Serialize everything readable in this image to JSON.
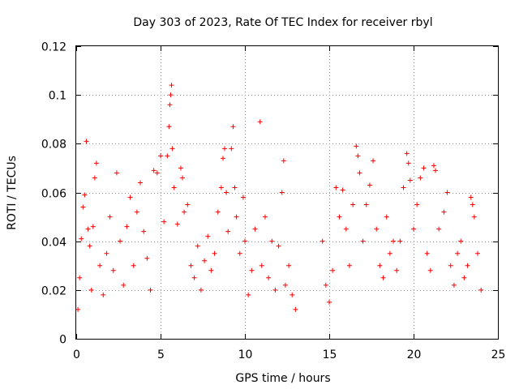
{
  "chart_data": {
    "type": "scatter",
    "title": "Day 303 of 2023, Rate Of TEC Index for receiver rbyl",
    "xlabel": "GPS time / hours",
    "ylabel": "ROTI / TECUs",
    "xlim": [
      0,
      25
    ],
    "ylim": [
      0,
      0.12
    ],
    "xticks": [
      0,
      5,
      10,
      15,
      20,
      25
    ],
    "xtick_labels": [
      "0",
      "5",
      "10",
      "15",
      "20",
      "25"
    ],
    "yticks": [
      0,
      0.02,
      0.04,
      0.06,
      0.08,
      0.1,
      0.12
    ],
    "ytick_labels": [
      "0",
      "0.02",
      "0.04",
      "0.06",
      "0.08",
      "0.1",
      "0.12"
    ],
    "grid": true,
    "marker": "+",
    "color": "#ff0000",
    "series": [
      {
        "name": "ROTI",
        "points": [
          [
            0.1,
            0.012
          ],
          [
            0.2,
            0.025
          ],
          [
            0.3,
            0.041
          ],
          [
            0.4,
            0.054
          ],
          [
            0.5,
            0.059
          ],
          [
            0.6,
            0.081
          ],
          [
            0.7,
            0.045
          ],
          [
            0.8,
            0.038
          ],
          [
            0.9,
            0.02
          ],
          [
            1.0,
            0.046
          ],
          [
            1.1,
            0.066
          ],
          [
            1.2,
            0.072
          ],
          [
            1.4,
            0.03
          ],
          [
            1.6,
            0.018
          ],
          [
            1.8,
            0.035
          ],
          [
            2.0,
            0.05
          ],
          [
            2.2,
            0.028
          ],
          [
            2.4,
            0.068
          ],
          [
            2.6,
            0.04
          ],
          [
            2.8,
            0.022
          ],
          [
            3.0,
            0.046
          ],
          [
            3.2,
            0.058
          ],
          [
            3.4,
            0.03
          ],
          [
            3.6,
            0.052
          ],
          [
            3.8,
            0.064
          ],
          [
            4.0,
            0.044
          ],
          [
            4.2,
            0.033
          ],
          [
            4.4,
            0.02
          ],
          [
            4.6,
            0.069
          ],
          [
            4.8,
            0.068
          ],
          [
            5.0,
            0.075
          ],
          [
            5.2,
            0.048
          ],
          [
            5.4,
            0.075
          ],
          [
            5.5,
            0.087
          ],
          [
            5.55,
            0.096
          ],
          [
            5.6,
            0.1
          ],
          [
            5.65,
            0.104
          ],
          [
            5.7,
            0.078
          ],
          [
            5.8,
            0.062
          ],
          [
            6.0,
            0.047
          ],
          [
            6.2,
            0.07
          ],
          [
            6.3,
            0.066
          ],
          [
            6.4,
            0.052
          ],
          [
            6.6,
            0.055
          ],
          [
            6.8,
            0.03
          ],
          [
            7.0,
            0.025
          ],
          [
            7.2,
            0.038
          ],
          [
            7.4,
            0.02
          ],
          [
            7.6,
            0.032
          ],
          [
            7.8,
            0.042
          ],
          [
            8.0,
            0.028
          ],
          [
            8.2,
            0.035
          ],
          [
            8.4,
            0.052
          ],
          [
            8.6,
            0.062
          ],
          [
            8.7,
            0.074
          ],
          [
            8.8,
            0.078
          ],
          [
            8.9,
            0.06
          ],
          [
            9.0,
            0.044
          ],
          [
            9.2,
            0.078
          ],
          [
            9.3,
            0.087
          ],
          [
            9.4,
            0.062
          ],
          [
            9.5,
            0.05
          ],
          [
            9.7,
            0.035
          ],
          [
            9.9,
            0.058
          ],
          [
            10.0,
            0.04
          ],
          [
            10.2,
            0.018
          ],
          [
            10.4,
            0.028
          ],
          [
            10.6,
            0.045
          ],
          [
            10.9,
            0.089
          ],
          [
            11.0,
            0.03
          ],
          [
            11.2,
            0.05
          ],
          [
            11.4,
            0.025
          ],
          [
            11.6,
            0.04
          ],
          [
            11.8,
            0.02
          ],
          [
            12.0,
            0.038
          ],
          [
            12.2,
            0.06
          ],
          [
            12.3,
            0.073
          ],
          [
            12.4,
            0.022
          ],
          [
            12.6,
            0.03
          ],
          [
            12.8,
            0.018
          ],
          [
            13.0,
            0.012
          ],
          [
            14.6,
            0.04
          ],
          [
            14.8,
            0.022
          ],
          [
            15.0,
            0.015
          ],
          [
            15.2,
            0.028
          ],
          [
            15.4,
            0.062
          ],
          [
            15.6,
            0.05
          ],
          [
            15.8,
            0.061
          ],
          [
            16.0,
            0.045
          ],
          [
            16.2,
            0.03
          ],
          [
            16.4,
            0.055
          ],
          [
            16.6,
            0.079
          ],
          [
            16.7,
            0.075
          ],
          [
            16.8,
            0.068
          ],
          [
            17.0,
            0.04
          ],
          [
            17.2,
            0.055
          ],
          [
            17.4,
            0.063
          ],
          [
            17.6,
            0.073
          ],
          [
            17.8,
            0.045
          ],
          [
            18.0,
            0.03
          ],
          [
            18.2,
            0.025
          ],
          [
            18.4,
            0.05
          ],
          [
            18.6,
            0.035
          ],
          [
            18.8,
            0.04
          ],
          [
            19.0,
            0.028
          ],
          [
            19.2,
            0.04
          ],
          [
            19.4,
            0.062
          ],
          [
            19.6,
            0.076
          ],
          [
            19.7,
            0.072
          ],
          [
            19.8,
            0.065
          ],
          [
            20.0,
            0.045
          ],
          [
            20.2,
            0.055
          ],
          [
            20.4,
            0.066
          ],
          [
            20.6,
            0.07
          ],
          [
            20.8,
            0.035
          ],
          [
            21.0,
            0.028
          ],
          [
            21.2,
            0.071
          ],
          [
            21.3,
            0.069
          ],
          [
            21.5,
            0.045
          ],
          [
            21.8,
            0.052
          ],
          [
            22.0,
            0.06
          ],
          [
            22.2,
            0.03
          ],
          [
            22.4,
            0.022
          ],
          [
            22.6,
            0.035
          ],
          [
            22.8,
            0.04
          ],
          [
            23.0,
            0.025
          ],
          [
            23.2,
            0.03
          ],
          [
            23.4,
            0.058
          ],
          [
            23.5,
            0.055
          ],
          [
            23.6,
            0.05
          ],
          [
            23.8,
            0.035
          ],
          [
            24.0,
            0.02
          ]
        ]
      }
    ]
  }
}
